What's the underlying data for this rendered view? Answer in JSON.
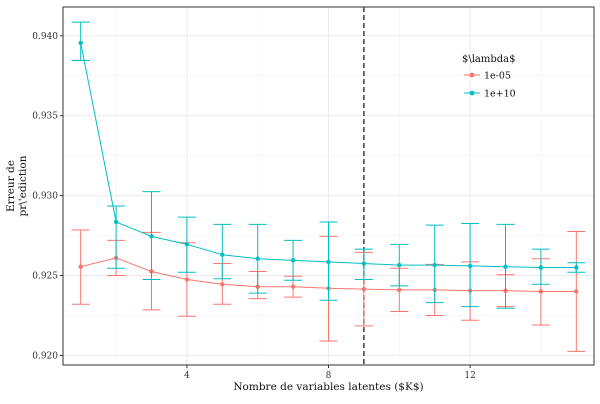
{
  "chart_data": {
    "type": "line",
    "xlabel": "Nombre de variables latentes ($K$)",
    "ylabel_lines": [
      "Erreur de",
      "pr\\'ediction"
    ],
    "xlim": [
      0.5,
      15.5
    ],
    "ylim": [
      0.9194,
      0.9418
    ],
    "x_ticks": [
      4,
      8,
      12
    ],
    "y_ticks": [
      0.92,
      0.925,
      0.93,
      0.935,
      0.94
    ],
    "y_tick_labels": [
      "0.920",
      "0.925",
      "0.930",
      "0.935",
      "0.940"
    ],
    "x_ticks_labels": [
      "4",
      "8",
      "12"
    ],
    "grid": true,
    "vline_x": 9,
    "vline_style": "dashed",
    "legend": {
      "title": "$\\lambda$",
      "placement": "top-right-inside"
    },
    "series": [
      {
        "name": "1e-05",
        "color": "#F8766D",
        "x": [
          1,
          2,
          3,
          4,
          5,
          6,
          7,
          8,
          9,
          10,
          11,
          12,
          13,
          14,
          15
        ],
        "y": [
          0.92555,
          0.9261,
          0.92525,
          0.92475,
          0.92445,
          0.9243,
          0.9243,
          0.9242,
          0.92415,
          0.9241,
          0.9241,
          0.92405,
          0.92405,
          0.924,
          0.924
        ],
        "err_low": [
          0.9232,
          0.925,
          0.92285,
          0.92245,
          0.9232,
          0.92355,
          0.92365,
          0.9209,
          0.92185,
          0.92275,
          0.9225,
          0.9222,
          0.92305,
          0.9219,
          0.92025
        ],
        "err_high": [
          0.92785,
          0.9272,
          0.9277,
          0.92705,
          0.92575,
          0.92525,
          0.92495,
          0.92745,
          0.92645,
          0.92545,
          0.9257,
          0.92585,
          0.92505,
          0.92605,
          0.92775
        ]
      },
      {
        "name": "1e+10",
        "color": "#00BFC4",
        "x": [
          1,
          2,
          3,
          4,
          5,
          6,
          7,
          8,
          9,
          10,
          11,
          12,
          13,
          14,
          15
        ],
        "y": [
          0.93955,
          0.92835,
          0.92745,
          0.92695,
          0.9263,
          0.92605,
          0.92595,
          0.92585,
          0.92575,
          0.92565,
          0.92565,
          0.9256,
          0.92555,
          0.9255,
          0.9255
        ],
        "err_low": [
          0.93845,
          0.92545,
          0.92475,
          0.9252,
          0.9248,
          0.9239,
          0.9247,
          0.92345,
          0.92475,
          0.92435,
          0.9233,
          0.92305,
          0.92295,
          0.92445,
          0.9252
        ],
        "err_high": [
          0.94085,
          0.92935,
          0.93025,
          0.92865,
          0.9282,
          0.9282,
          0.9272,
          0.92835,
          0.92665,
          0.92695,
          0.92815,
          0.92825,
          0.9282,
          0.92665,
          0.9258
        ]
      }
    ]
  }
}
